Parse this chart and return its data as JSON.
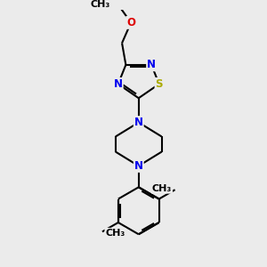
{
  "background_color": "#ebebeb",
  "bond_color": "#000000",
  "N_color": "#0000ee",
  "O_color": "#dd0000",
  "S_color": "#aaaa00",
  "line_width": 1.5,
  "font_size": 8.5,
  "figsize": [
    3.0,
    3.0
  ],
  "dpi": 100,
  "xlim": [
    0,
    10
  ],
  "ylim": [
    0,
    10
  ]
}
